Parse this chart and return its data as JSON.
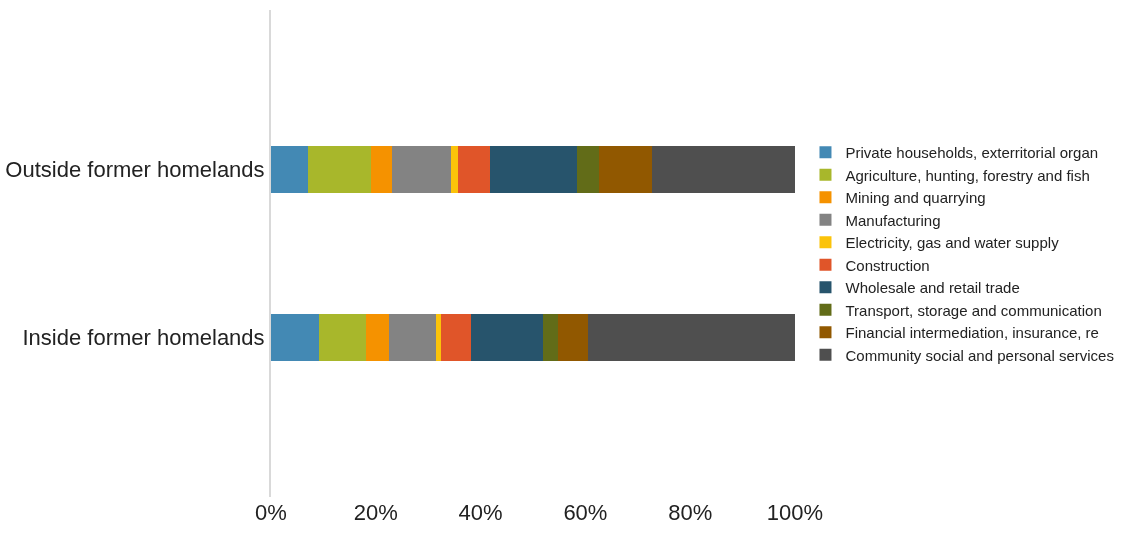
{
  "chart_data": {
    "type": "bar",
    "orientation": "horizontal",
    "stacked": true,
    "categories": [
      "Outside former homelands",
      "Inside former homelands"
    ],
    "series": [
      {
        "name": "Private households, exterritorial organ",
        "color": "#4389b4",
        "values": [
          7.1,
          9.1
        ]
      },
      {
        "name": "Agriculture, hunting, forestry and fish",
        "color": "#a8b72b",
        "values": [
          12.0,
          9.0
        ]
      },
      {
        "name": "Mining and quarrying",
        "color": "#f59200",
        "values": [
          3.9,
          4.5
        ]
      },
      {
        "name": "Manufacturing",
        "color": "#838383",
        "values": [
          11.4,
          8.8
        ]
      },
      {
        "name": "Electricity, gas and water supply",
        "color": "#fbc30a",
        "values": [
          1.3,
          1.0
        ]
      },
      {
        "name": "Construction",
        "color": "#e05529",
        "values": [
          6.0,
          5.7
        ]
      },
      {
        "name": "Wholesale and retail trade",
        "color": "#27546c",
        "values": [
          16.7,
          13.8
        ]
      },
      {
        "name": "Transport, storage and communication",
        "color": "#626c18",
        "values": [
          4.1,
          2.8
        ]
      },
      {
        "name": "Financial intermediation, insurance, re",
        "color": "#915800",
        "values": [
          10.2,
          5.7
        ]
      },
      {
        "name": "Community social and personal services",
        "color": "#4f4f4f",
        "values": [
          27.3,
          39.6
        ]
      }
    ],
    "xlim": [
      0,
      100
    ],
    "xticks": [
      {
        "value": 0,
        "label": "0%"
      },
      {
        "value": 20,
        "label": "20%"
      },
      {
        "value": 40,
        "label": "40%"
      },
      {
        "value": 60,
        "label": "60%"
      },
      {
        "value": 80,
        "label": "80%"
      },
      {
        "value": 100,
        "label": "100%"
      }
    ],
    "legend": "right"
  }
}
